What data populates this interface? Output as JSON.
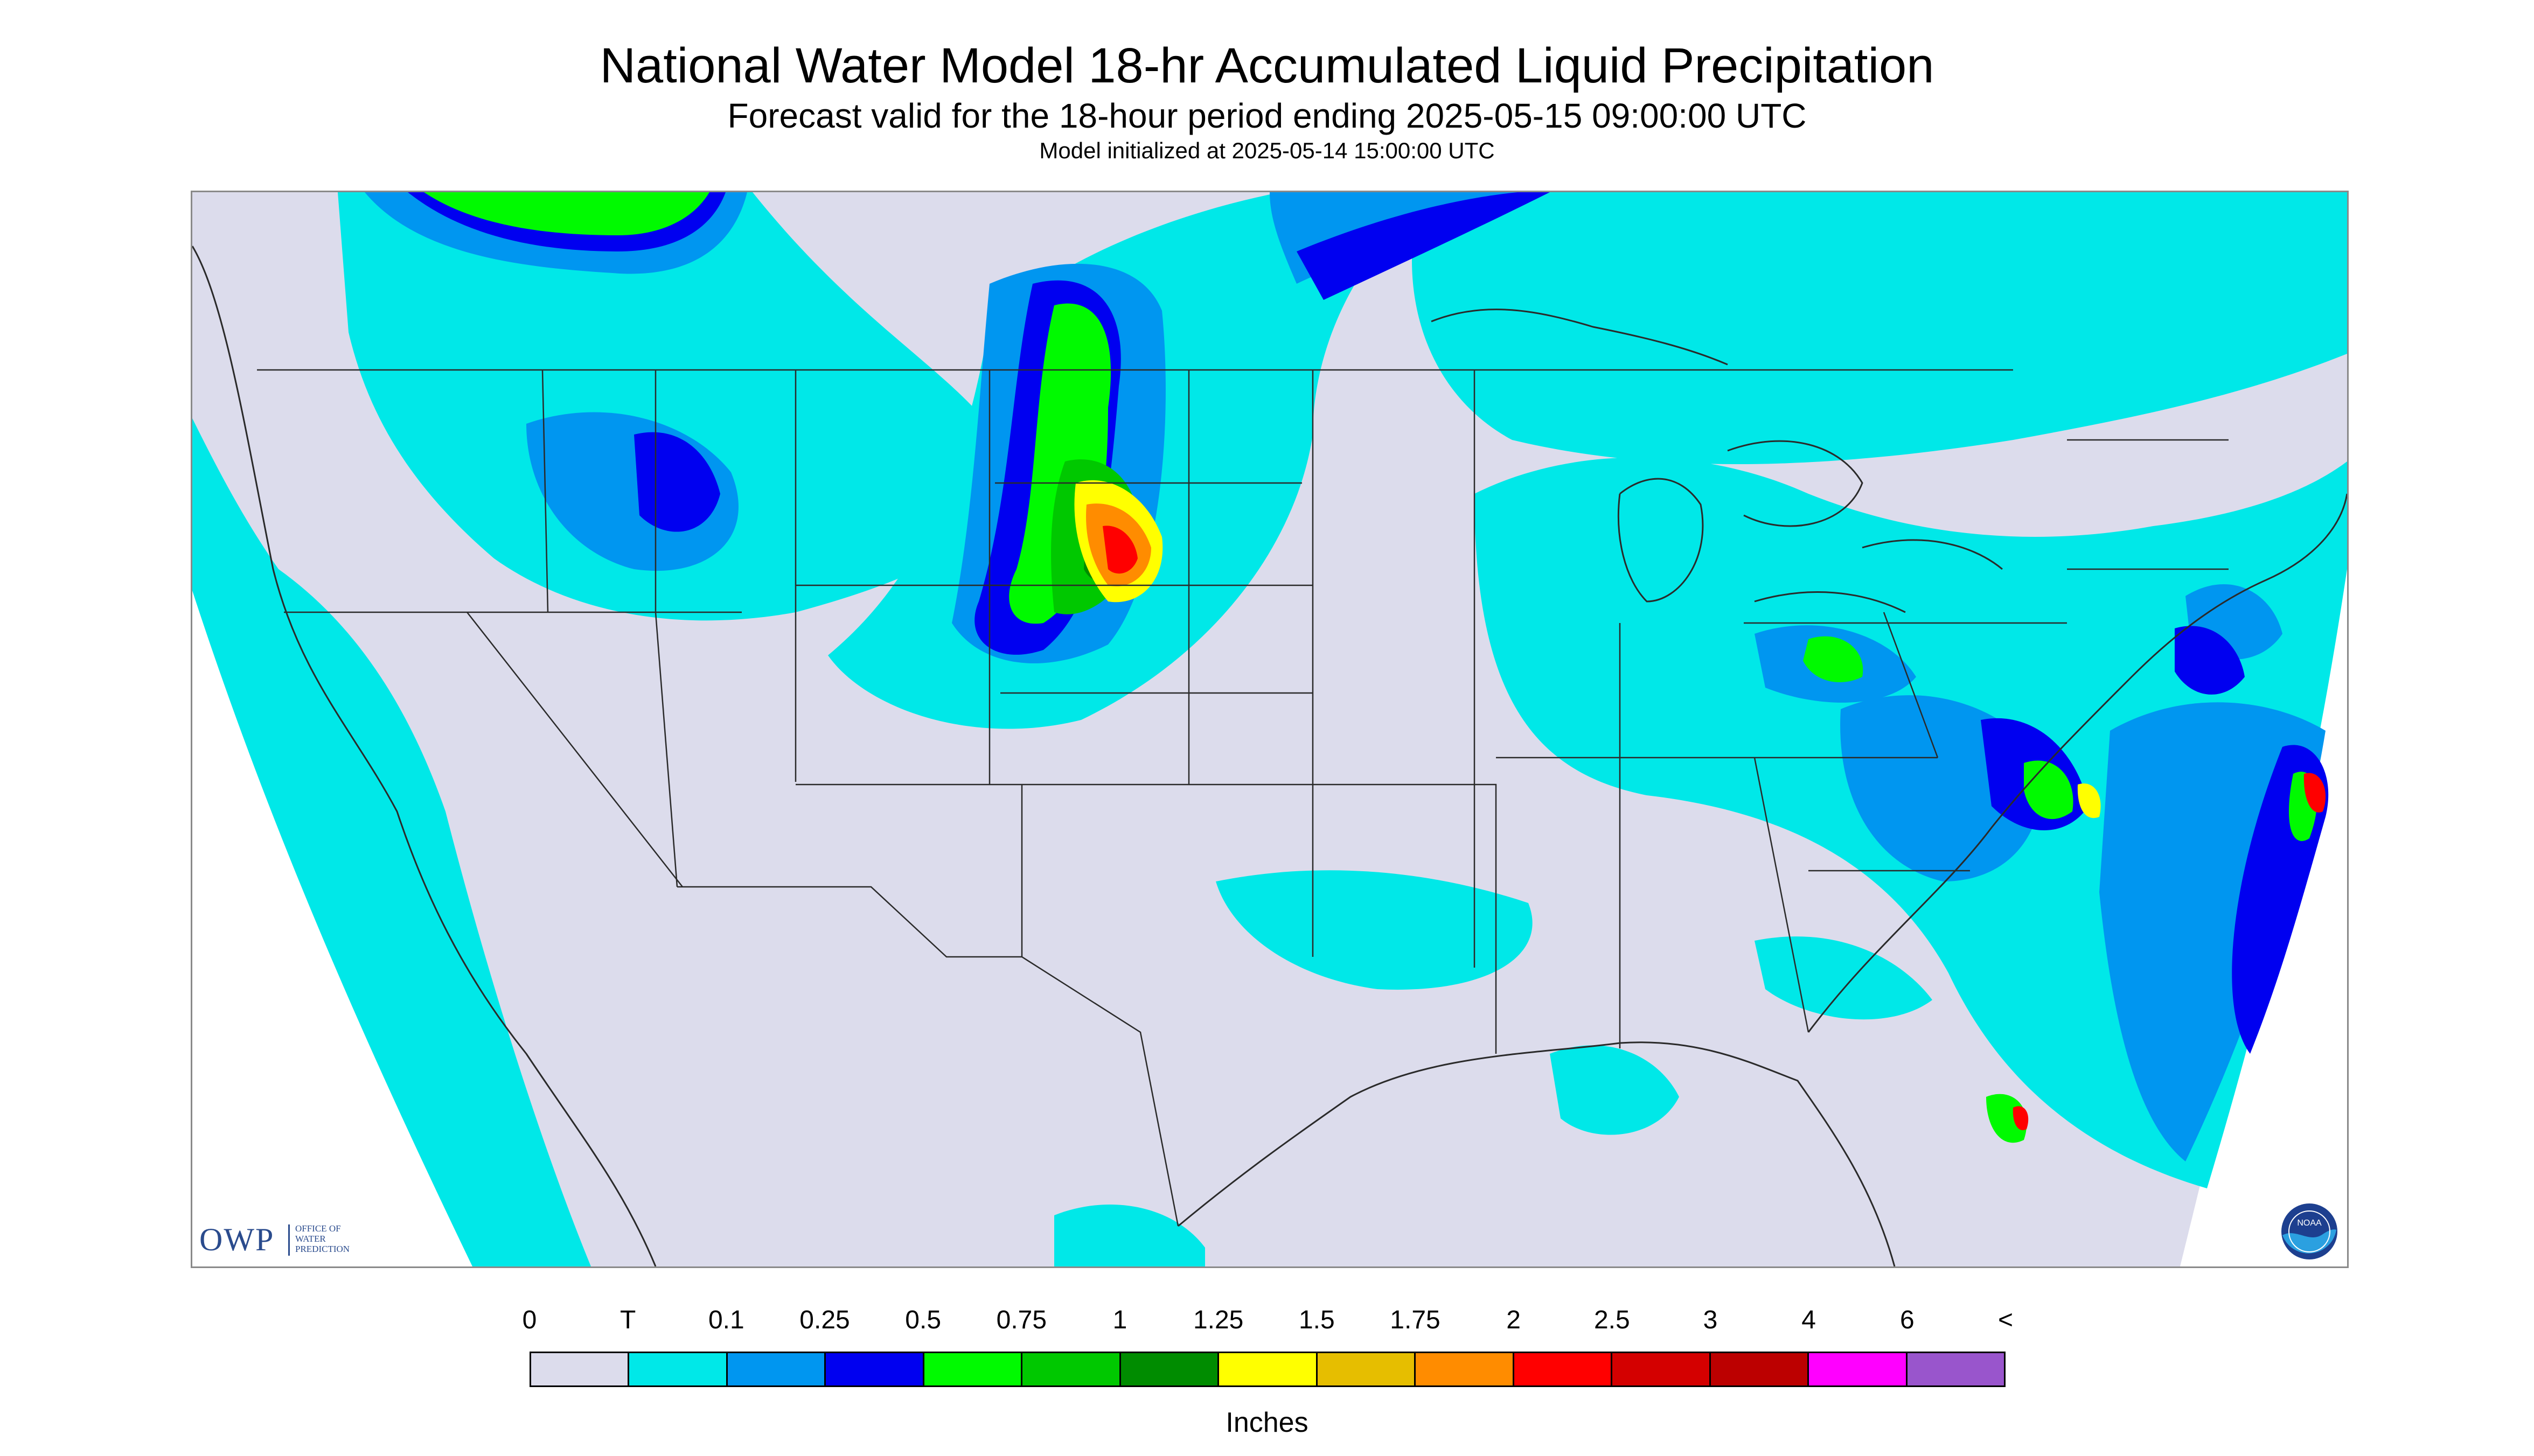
{
  "title": "National Water Model 18-hr Accumulated Liquid Precipitation",
  "subtitle": "Forecast valid for the 18-hour period ending 2025-05-15 09:00:00 UTC",
  "init_line": "Model initialized at 2025-05-14 15:00:00 UTC",
  "logos": {
    "owp_mark": "OWP",
    "owp_text": "OFFICE OF\nWATER\nPREDICTION",
    "noaa_text": "NOAA"
  },
  "legend": {
    "units": "Inches",
    "tick_labels": [
      "0",
      "T",
      "0.1",
      "0.25",
      "0.5",
      "0.75",
      "1",
      "1.25",
      "1.5",
      "1.75",
      "2",
      "2.5",
      "3",
      "4",
      "6",
      "<"
    ],
    "colors": [
      "#dcdcec",
      "#00e8e8",
      "#0096f0",
      "#0000f0",
      "#00fa00",
      "#00c800",
      "#008c00",
      "#ffff00",
      "#e6be00",
      "#ff8c00",
      "#ff0000",
      "#d40000",
      "#bc0000",
      "#ff00ff",
      "#9955cc"
    ]
  },
  "map_colors": {
    "no_data": "#ffffff",
    "zero": "#dcdcec",
    "trace": "#00e8e8",
    "light": "#0096f0",
    "moderate": "#0000f0",
    "green": "#00fa00",
    "green_mid": "#00c800",
    "green_dark": "#008c00",
    "yellow": "#ffff00",
    "orange": "#ff8c00",
    "red": "#ff0000",
    "border": "#2a2a2a"
  }
}
